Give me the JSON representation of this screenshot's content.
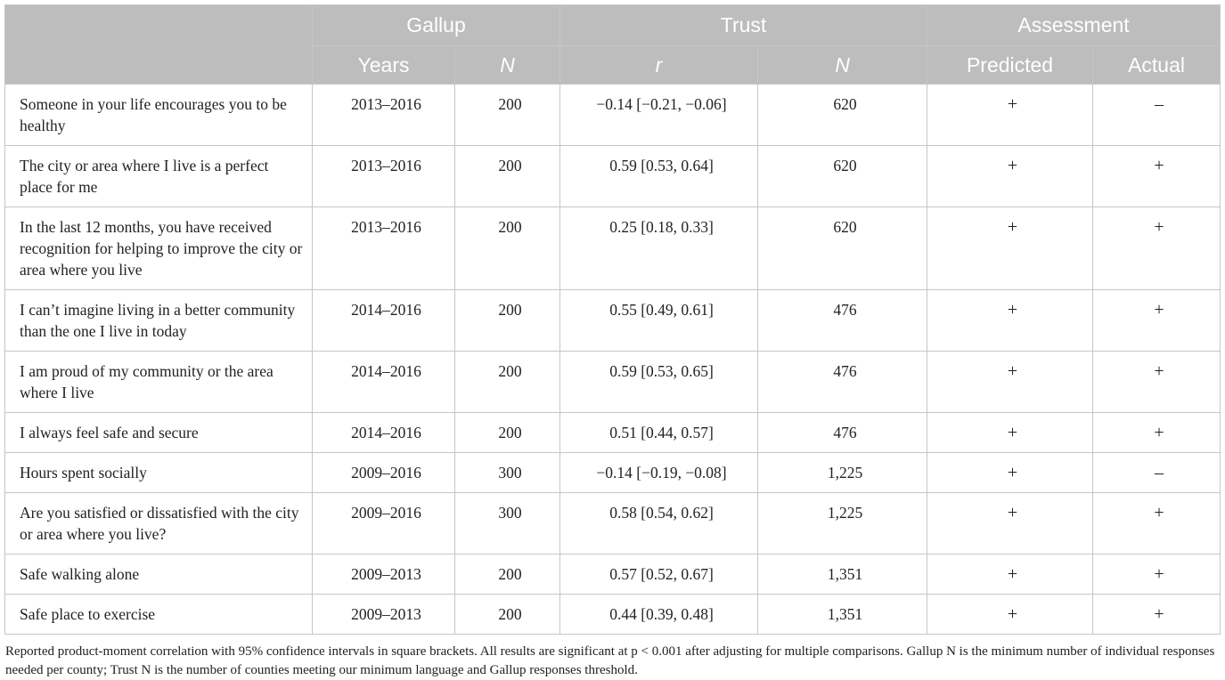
{
  "header": {
    "groups": [
      "Gallup",
      "Trust",
      "Assessment"
    ],
    "subheaders": [
      "Years",
      "N",
      "r",
      "N",
      "Predicted",
      "Actual"
    ]
  },
  "rows": [
    {
      "item": "Someone in your life encourages you to be healthy",
      "years": "2013–2016",
      "gallup_n": "200",
      "r": "−0.14 [−0.21, −0.06]",
      "trust_n": "620",
      "predicted": "+",
      "actual": "–"
    },
    {
      "item": "The city or area where I live is a perfect place for me",
      "years": "2013–2016",
      "gallup_n": "200",
      "r": "0.59 [0.53, 0.64]",
      "trust_n": "620",
      "predicted": "+",
      "actual": "+"
    },
    {
      "item": "In the last 12 months, you have received recognition for helping to improve the city or area where you live",
      "years": "2013–2016",
      "gallup_n": "200",
      "r": "0.25 [0.18, 0.33]",
      "trust_n": "620",
      "predicted": "+",
      "actual": "+"
    },
    {
      "item": "I can’t imagine living in a better community than the one I live in today",
      "years": "2014–2016",
      "gallup_n": "200",
      "r": "0.55 [0.49, 0.61]",
      "trust_n": "476",
      "predicted": "+",
      "actual": "+"
    },
    {
      "item": "I am proud of my community or the area where I live",
      "years": "2014–2016",
      "gallup_n": "200",
      "r": "0.59 [0.53, 0.65]",
      "trust_n": "476",
      "predicted": "+",
      "actual": "+"
    },
    {
      "item": "I always feel safe and secure",
      "years": "2014–2016",
      "gallup_n": "200",
      "r": "0.51 [0.44, 0.57]",
      "trust_n": "476",
      "predicted": "+",
      "actual": "+"
    },
    {
      "item": "Hours spent socially",
      "years": "2009–2016",
      "gallup_n": "300",
      "r": "−0.14 [−0.19, −0.08]",
      "trust_n": "1,225",
      "predicted": "+",
      "actual": "–"
    },
    {
      "item": "Are you satisfied or dissatisfied with the city or area where you live?",
      "years": "2009–2016",
      "gallup_n": "300",
      "r": "0.58 [0.54, 0.62]",
      "trust_n": "1,225",
      "predicted": "+",
      "actual": "+"
    },
    {
      "item": "Safe walking alone",
      "years": "2009–2013",
      "gallup_n": "200",
      "r": "0.57 [0.52, 0.67]",
      "trust_n": "1,351",
      "predicted": "+",
      "actual": "+"
    },
    {
      "item": "Safe place to exercise",
      "years": "2009–2013",
      "gallup_n": "200",
      "r": "0.44 [0.39, 0.48]",
      "trust_n": "1,351",
      "predicted": "+",
      "actual": "+"
    }
  ],
  "footnote": "Reported product-moment correlation with 95% confidence intervals in square brackets. All results are significant at p < 0.001 after adjusting for multiple comparisons. Gallup N is the minimum number of individual responses needed per county; Trust N is the number of counties meeting our minimum language and Gallup responses threshold.",
  "colors": {
    "header_bg": "#bdbdbd",
    "header_text": "#ffffff",
    "grid": "#c6c6c6"
  }
}
